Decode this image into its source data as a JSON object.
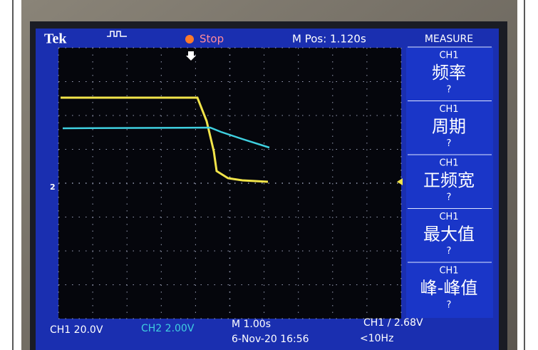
{
  "header": {
    "brand": "Tek",
    "status": "Stop",
    "position": "M Pos: 1.120s",
    "menu_title": "MEASURE"
  },
  "markers": {
    "ch2": "2"
  },
  "menu": [
    {
      "channel": "CH1",
      "label": "频率",
      "value": "?"
    },
    {
      "channel": "CH1",
      "label": "周期",
      "value": "?"
    },
    {
      "channel": "CH1",
      "label": "正频宽",
      "value": "?"
    },
    {
      "channel": "CH1",
      "label": "最大值",
      "value": "?"
    },
    {
      "channel": "CH1",
      "label": "峰-峰值",
      "value": "?"
    }
  ],
  "footer": {
    "ch1": "CH1  20.0V",
    "ch2": "CH2  2.00V",
    "timebase": "M 1.00s",
    "datetime": "6-Nov-20 16:56",
    "trigger": "CH1 ∕ 2.68V",
    "frequency": "<10Hz"
  }
}
